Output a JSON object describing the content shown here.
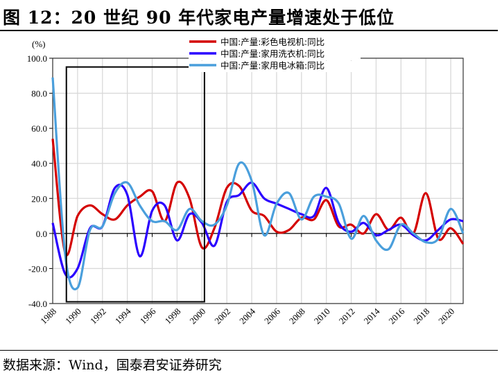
{
  "title": "图 12：20 世纪 90 年代家电产量增速处于低位",
  "source": "数据来源：Wind，国泰君安证券研究",
  "chart_data": {
    "type": "line",
    "title": "",
    "ylabel": "(%)",
    "xlabel": "",
    "ylim": [
      -40,
      100
    ],
    "xlim": [
      1988,
      2021
    ],
    "yticks": [
      "100.0",
      "80.0",
      "60.0",
      "40.0",
      "20.0",
      "0.0",
      "-20.0",
      "-40.0"
    ],
    "xticks": [
      "1988",
      "1990",
      "1992",
      "1994",
      "1996",
      "1998",
      "2000",
      "2002",
      "2004",
      "2006",
      "2008",
      "2010",
      "2012",
      "2014",
      "2016",
      "2018",
      "2020"
    ],
    "grid": true,
    "legend_position": "top-center",
    "x": [
      1988,
      1989,
      1990,
      1991,
      1992,
      1993,
      1994,
      1995,
      1996,
      1997,
      1998,
      1999,
      2000,
      2001,
      2002,
      2003,
      2004,
      2005,
      2006,
      2007,
      2008,
      2009,
      2010,
      2011,
      2012,
      2013,
      2014,
      2015,
      2016,
      2017,
      2018,
      2019,
      2020,
      2021
    ],
    "series": [
      {
        "name": "中国:产量:彩色电视机:同比",
        "color": "#d40000",
        "values": [
          54,
          -11,
          10,
          16,
          11,
          8,
          16,
          21,
          24,
          7,
          29,
          20,
          -8,
          3,
          26,
          27,
          13,
          10,
          1,
          2,
          9,
          8,
          19,
          4,
          5,
          0,
          11,
          2,
          9,
          0,
          23,
          -3,
          3,
          -6
        ]
      },
      {
        "name": "中国:产量:家用洗衣机:同比",
        "color": "#2a00ff",
        "values": [
          6,
          -23,
          -20,
          3,
          4,
          26,
          22,
          -13,
          13,
          16,
          -4,
          11,
          6,
          -7,
          18,
          22,
          29,
          20,
          17,
          14,
          11,
          10,
          26,
          6,
          1,
          6,
          -1,
          2,
          5,
          -1,
          -4,
          2,
          8,
          7
        ]
      },
      {
        "name": "中国:产量:家用电冰箱:同比",
        "color": "#4a9fdc",
        "values": [
          89,
          -12,
          -31,
          2,
          4,
          23,
          29,
          16,
          7,
          7,
          2,
          14,
          7,
          5,
          16,
          40,
          30,
          -1,
          17,
          23,
          8,
          21,
          21,
          17,
          -3,
          10,
          -4,
          -9,
          5,
          0,
          -5,
          -3,
          14,
          0
        ]
      }
    ],
    "annotations": [
      {
        "type": "rectangle",
        "x_range": [
          1989.1,
          2000.2
        ],
        "y_range": [
          -39,
          95
        ],
        "color": "#000000"
      }
    ]
  }
}
